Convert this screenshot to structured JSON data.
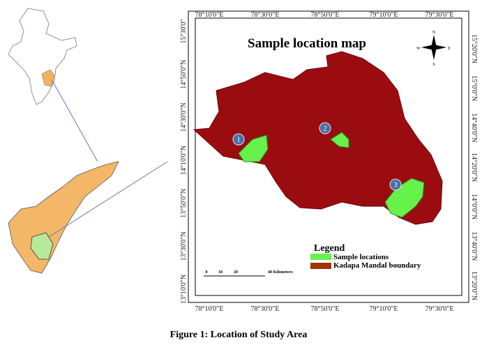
{
  "map": {
    "title": "Sample location map",
    "lon_labels": [
      "78°10'0\"E",
      "78°30'0\"E",
      "78°50'0\"E",
      "79°10'0\"E",
      "79°30'0\"E"
    ],
    "lat_labels_left": [
      "15°30'0\"",
      "14°50'0\"N",
      "14°30'0\"N",
      "14°10'0\"N",
      "13°50'0\"N",
      "13°30'0\"N",
      "13°10'0\"N"
    ],
    "lat_labels_right": [
      "15°20'0\"N",
      "15°0'0\"N",
      "14°40'0\"N",
      "14°20'0\"N",
      "14°0'0\"N",
      "13°40'0\"N",
      "13°20'0\"N"
    ],
    "compass": [
      "N",
      "E",
      "S",
      "W"
    ],
    "markers": [
      "1",
      "2",
      "3"
    ],
    "legend": {
      "title": "Legend",
      "items": [
        "Sample locations",
        "Kadapa Mandal boundary"
      ]
    },
    "scale": [
      "0",
      "10",
      "20",
      "40 Kilometers"
    ]
  },
  "caption": "Figure 1: Location of Study Area"
}
